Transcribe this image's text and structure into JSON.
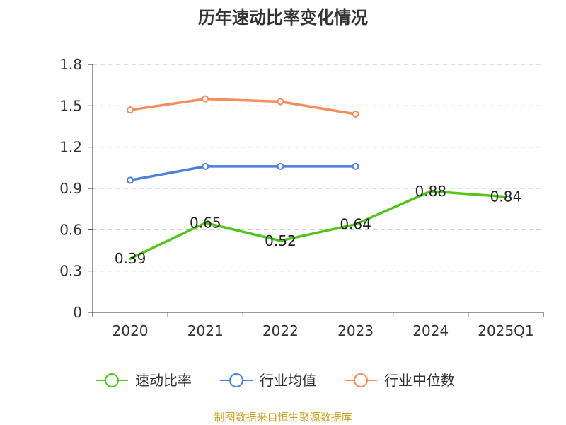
{
  "chart_data": {
    "type": "line",
    "title": "历年速动比率变化情况",
    "categories": [
      "2020",
      "2021",
      "2022",
      "2023",
      "2024",
      "2025Q1"
    ],
    "y_ticks": [
      "0",
      "0.3",
      "0.6",
      "0.9",
      "1.2",
      "1.5",
      "1.8"
    ],
    "ylim": [
      0,
      1.8
    ],
    "grid": true,
    "legend_position": "bottom",
    "series": [
      {
        "name": "速动比率",
        "color": "#52c41a",
        "values": [
          0.39,
          0.65,
          0.52,
          0.64,
          0.88,
          0.84
        ],
        "labels": [
          "0.39",
          "0.65",
          "0.52",
          "0.64",
          "0.88",
          "0.84"
        ],
        "show_labels": true,
        "show_markers": false
      },
      {
        "name": "行业均值",
        "color": "#4a7fdb",
        "values": [
          0.96,
          1.06,
          1.06,
          1.06,
          null,
          null
        ],
        "show_labels": false,
        "show_markers": true
      },
      {
        "name": "行业中位数",
        "color": "#f68d5c",
        "values": [
          1.47,
          1.55,
          1.53,
          1.44,
          null,
          null
        ],
        "show_labels": false,
        "show_markers": true
      }
    ]
  },
  "footer": {
    "source": "制图数据来自恒生聚源数据库"
  }
}
